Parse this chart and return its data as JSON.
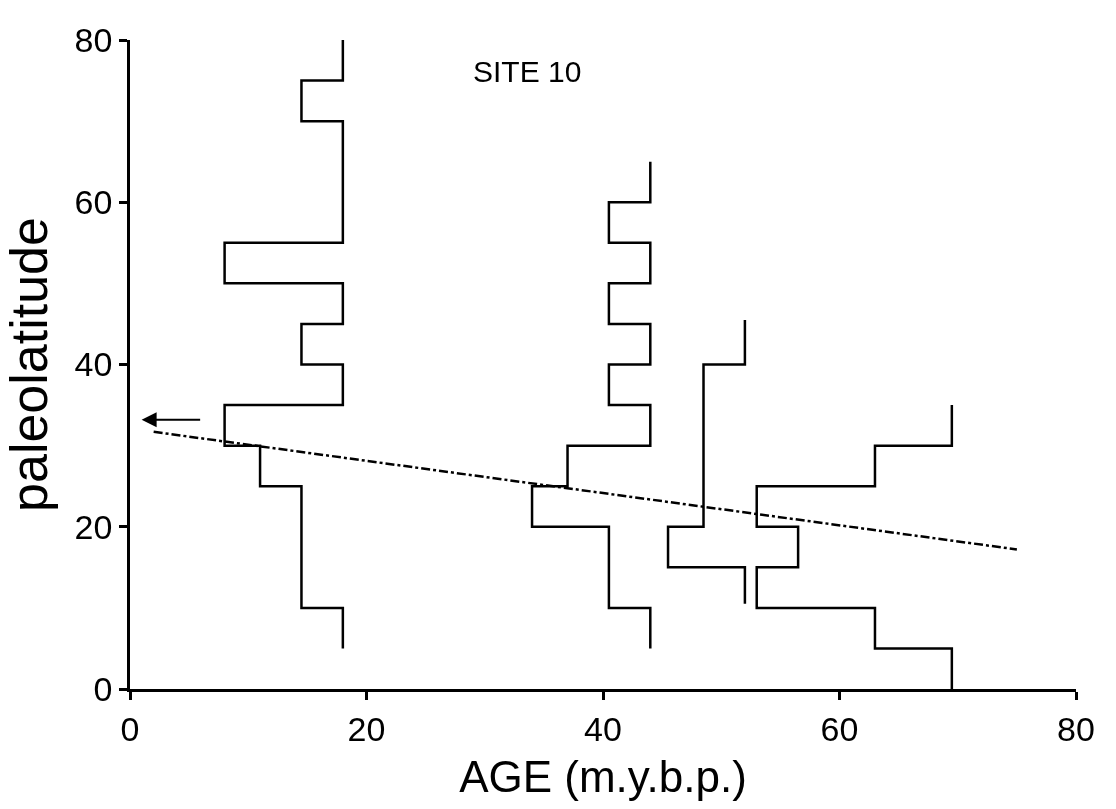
{
  "chart_data": {
    "type": "line",
    "title": "SITE 10",
    "xlabel": "AGE (m.y.b.p.)",
    "ylabel": "paleolatitude",
    "xlim": [
      0,
      80
    ],
    "ylim": [
      0,
      80
    ],
    "xticks": [
      0,
      20,
      40,
      60,
      80
    ],
    "yticks": [
      0,
      20,
      40,
      60,
      80
    ],
    "marker": "none",
    "series": [
      {
        "color": "#000000",
        "line_style": "solid",
        "x": [
          18,
          18,
          14.5,
          14.5,
          18,
          18,
          8,
          8,
          18,
          18,
          14.5,
          14.5,
          18,
          18,
          8,
          8,
          11,
          11,
          14.5,
          14.5,
          18,
          18
        ],
        "values": [
          80,
          75,
          75,
          70,
          70,
          55,
          55,
          50,
          50,
          45,
          45,
          40,
          40,
          35,
          35,
          30,
          30,
          25,
          25,
          10,
          10,
          5
        ]
      },
      {
        "color": "#000000",
        "line_style": "solid",
        "x": [
          44,
          44,
          40.5,
          40.5,
          44,
          44,
          40.5,
          40.5,
          44,
          44,
          40.5,
          40.5,
          44,
          44,
          37,
          37,
          34,
          34,
          40.5,
          40.5,
          44,
          44
        ],
        "values": [
          65,
          60,
          60,
          55,
          55,
          50,
          50,
          45,
          45,
          40,
          40,
          35,
          35,
          30,
          30,
          25,
          25,
          20,
          20,
          10,
          10,
          5
        ]
      },
      {
        "color": "#000000",
        "line_style": "solid",
        "x": [
          52,
          52,
          48.5,
          48.5,
          45.5,
          45.5,
          52,
          52
        ],
        "values": [
          45.5,
          40,
          40,
          20,
          20,
          15,
          15,
          10.5
        ]
      },
      {
        "color": "#000000",
        "line_style": "solid",
        "x": [
          69.5,
          69.5,
          63,
          63,
          53,
          53,
          56.5,
          56.5,
          53,
          53,
          63,
          63,
          69.5,
          69.5
        ],
        "values": [
          35,
          30,
          30,
          25,
          25,
          20,
          20,
          15,
          15,
          10,
          10,
          5,
          5,
          0
        ]
      },
      {
        "color": "#000000",
        "line_style": "dashdot",
        "x": [
          2,
          75
        ],
        "values": [
          31.7,
          17.2
        ]
      }
    ]
  }
}
